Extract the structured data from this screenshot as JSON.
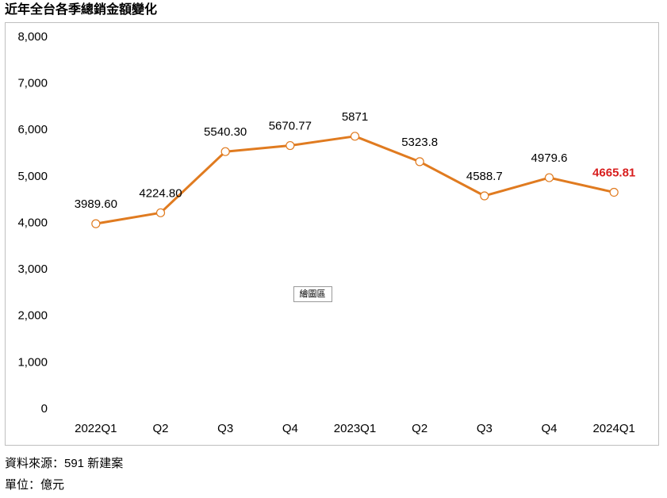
{
  "chart_data": {
    "type": "line",
    "title": "近年全台各季總銷金額變化",
    "categories": [
      "2022Q1",
      "Q2",
      "Q3",
      "Q4",
      "2023Q1",
      "Q2",
      "Q3",
      "Q4",
      "2024Q1"
    ],
    "series": [
      {
        "color": "#e07b20",
        "values": [
          3989.6,
          4224.8,
          5540.3,
          5670.77,
          5871,
          5323.8,
          4588.7,
          4979.6,
          4665.81
        ],
        "value_labels": [
          "3989.60",
          "4224.80",
          "5540.30",
          "5670.77",
          "5871",
          "5323.8",
          "4588.7",
          "4979.6",
          "4665.81"
        ]
      }
    ],
    "highlight_color": "#d81e1e",
    "ylim": [
      0,
      8000
    ],
    "yticks": [
      0,
      {
        "value": 1000,
        "label": "1,000"
      },
      {
        "value": 2000,
        "label": "2,000"
      },
      {
        "value": 3000,
        "label": "3,000"
      },
      {
        "value": 4000,
        "label": "4,000"
      },
      {
        "value": 5000,
        "label": "5,000"
      },
      {
        "value": 6000,
        "label": "6,000"
      },
      {
        "value": 7000,
        "label": "7,000"
      },
      {
        "value": 8000,
        "label": "8,000"
      }
    ],
    "grid": false,
    "tooltip": "繪圖區",
    "source": "資料來源：591 新建案",
    "unit": "單位：億元"
  }
}
